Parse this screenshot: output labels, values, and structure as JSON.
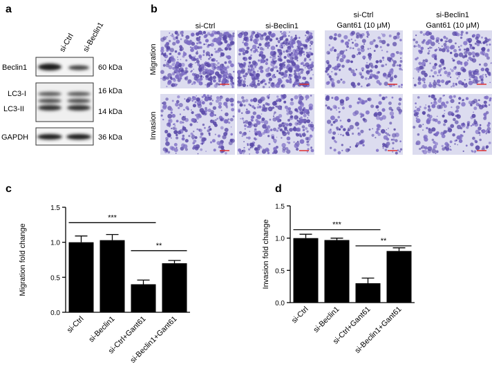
{
  "panel_labels": [
    "a",
    "b",
    "c",
    "d"
  ],
  "blot": {
    "lanes": [
      "si-Ctrl",
      "si-Beclin1"
    ],
    "rows": [
      "Beclin1",
      "LC3-I",
      "LC3-II",
      "GAPDH"
    ],
    "sizes": [
      "60 kDa",
      "16 kDa",
      "14 kDa",
      "36 kDa"
    ]
  },
  "images": {
    "columns": [
      [
        "si-Ctrl"
      ],
      [
        "si-Beclin1"
      ],
      [
        "si-Ctrl",
        "Gant61 (10 μM)"
      ],
      [
        "si-Beclin1",
        "Gant61 (10 μM)"
      ]
    ],
    "rows": [
      "Migration",
      "Invasion"
    ]
  },
  "chart_data": [
    {
      "type": "bar",
      "ylabel": "Migration fold change",
      "categories": [
        "si-Ctrl",
        "si-Beclin1",
        "si-Ctrl+Gant61",
        "si-Beclin1+Gant61"
      ],
      "values": [
        1.0,
        1.03,
        0.4,
        0.7
      ],
      "errors": [
        0.09,
        0.08,
        0.06,
        0.04
      ],
      "color": "#000000",
      "ylim": [
        0,
        1.5
      ],
      "yticks": [
        {
          "value": 0,
          "label": "0.0"
        },
        {
          "value": 0.5,
          "label": "0.5"
        },
        {
          "value": 1,
          "label": "1.0"
        },
        {
          "value": 1.5,
          "label": "1.5"
        }
      ],
      "annotations": [
        "***",
        "**"
      ]
    },
    {
      "type": "bar",
      "ylabel": "Invasion fold change",
      "categories": [
        "si-Ctrl",
        "si-Beclin1",
        "si-Ctrl+Gant61",
        "si-Beclin1+Gant61"
      ],
      "values": [
        1.0,
        0.97,
        0.3,
        0.8
      ],
      "errors": [
        0.06,
        0.03,
        0.08,
        0.05
      ],
      "color": "#000000",
      "ylim": [
        0,
        1.5
      ],
      "yticks": [
        {
          "value": 0,
          "label": "0.0"
        },
        {
          "value": 0.5,
          "label": "0.5"
        },
        {
          "value": 1,
          "label": "1.0"
        },
        {
          "value": 1.5,
          "label": "1.5"
        }
      ],
      "annotations": [
        "***",
        "**"
      ]
    }
  ]
}
